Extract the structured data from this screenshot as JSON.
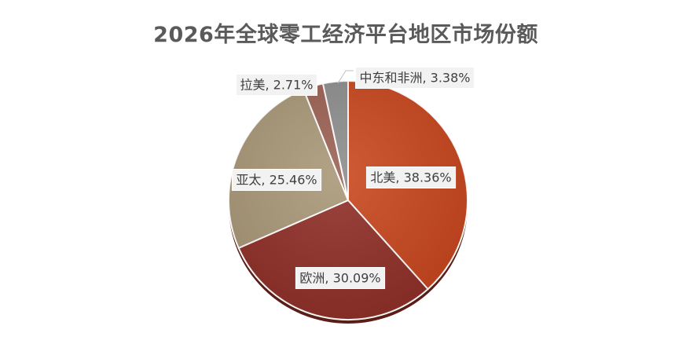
{
  "chart_data": {
    "type": "pie",
    "title": "2026年全球零工经济平台地区市场份额",
    "categories": [
      "北美",
      "欧洲",
      "亚太",
      "拉美",
      "中东和非洲"
    ],
    "values": [
      38.36,
      30.09,
      25.46,
      2.71,
      3.38
    ],
    "unit": "%",
    "labels": [
      "北美, 38.36%",
      "欧洲, 30.09%",
      "亚太, 25.46%",
      "拉美, 2.71%",
      "中东和非洲, 3.38%"
    ],
    "colors": [
      "#c8451c",
      "#8f2d26",
      "#a89676",
      "#9b5f52",
      "#8c8c8c"
    ]
  }
}
